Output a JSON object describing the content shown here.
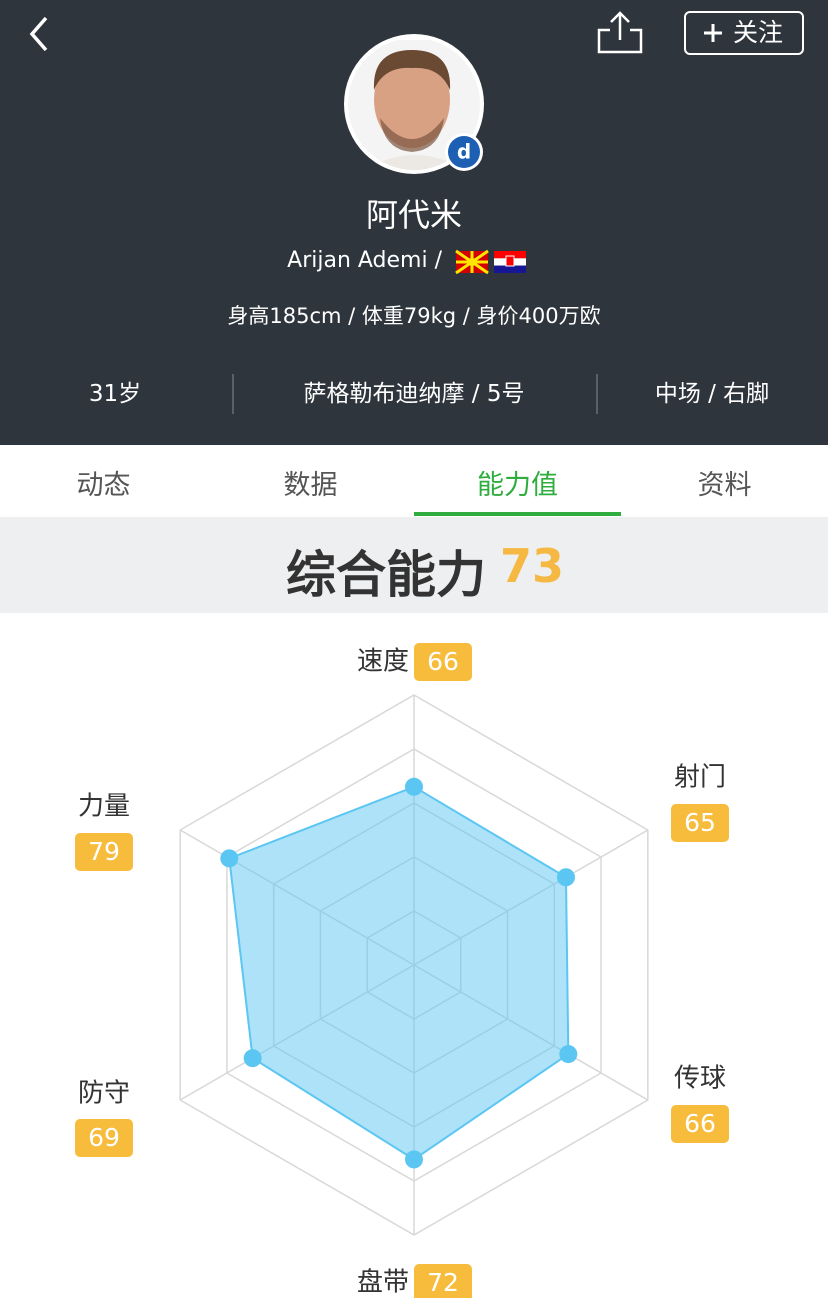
{
  "header": {
    "name": "阿代米",
    "name_en": "Arijan Ademi /",
    "stats": "身高185cm / 体重79kg / 身价400万欧",
    "follow": "关注",
    "info": [
      "31岁",
      "萨格勒布迪纳摩 / 5号",
      "中场 / 右脚"
    ]
  },
  "tabs": [
    "动态",
    "数据",
    "能力值",
    "资料"
  ],
  "overall": {
    "label": "综合能力",
    "value": 73
  },
  "chart_data": {
    "type": "radar",
    "categories": [
      "速度",
      "射门",
      "传球",
      "盘带",
      "防守",
      "力量"
    ],
    "values": [
      66,
      65,
      66,
      72,
      69,
      79
    ],
    "color": "#5cc6f2",
    "rlim": [
      0,
      100
    ],
    "rticks": [
      20,
      40,
      60,
      80,
      100
    ]
  }
}
